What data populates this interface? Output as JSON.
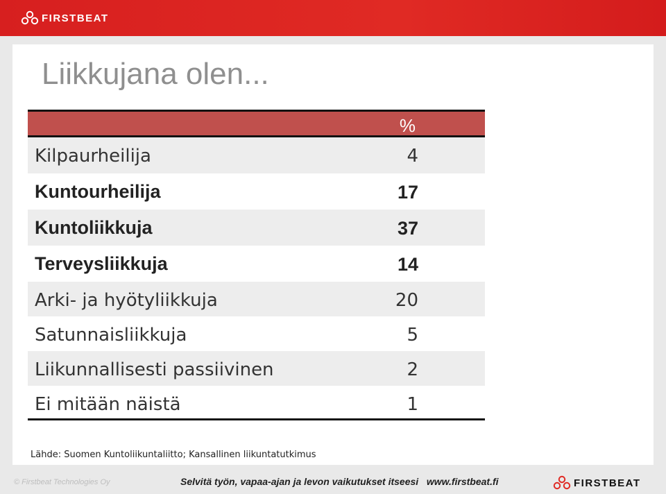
{
  "header": {
    "brand": "FIRSTBEAT"
  },
  "title": "Liikkujana olen...",
  "table": {
    "column_header": "%",
    "rows": [
      {
        "label": "Kilpaurheilija",
        "value": "4"
      },
      {
        "label": "Kuntourheilija",
        "value": "17"
      },
      {
        "label": "Kuntoliikkuja",
        "value": "37"
      },
      {
        "label": "Terveysliikkuja",
        "value": "14"
      },
      {
        "label": "Arki- ja hyötyliikkuja",
        "value": "20"
      },
      {
        "label": "Satunnaisliikkuja",
        "value": "5"
      },
      {
        "label": "Liikunnallisesti passiivinen",
        "value": "2"
      },
      {
        "label": "Ei mitään näistä",
        "value": "1"
      }
    ]
  },
  "source": "Lähde: Suomen Kuntoliikuntaliitto; Kansallinen liikuntatutkimus",
  "footer": {
    "copyright": "© Firstbeat Technologies Oy",
    "tagline": "Selvitä työn, vapaa-ajan ja levon vaikutukset itseesi   www.firstbeat.fi",
    "brand": "FIRSTBEAT"
  },
  "colors": {
    "brand_red": "#e02a24",
    "header_row": "#c0504d",
    "title_gray": "#8f8f8f"
  }
}
